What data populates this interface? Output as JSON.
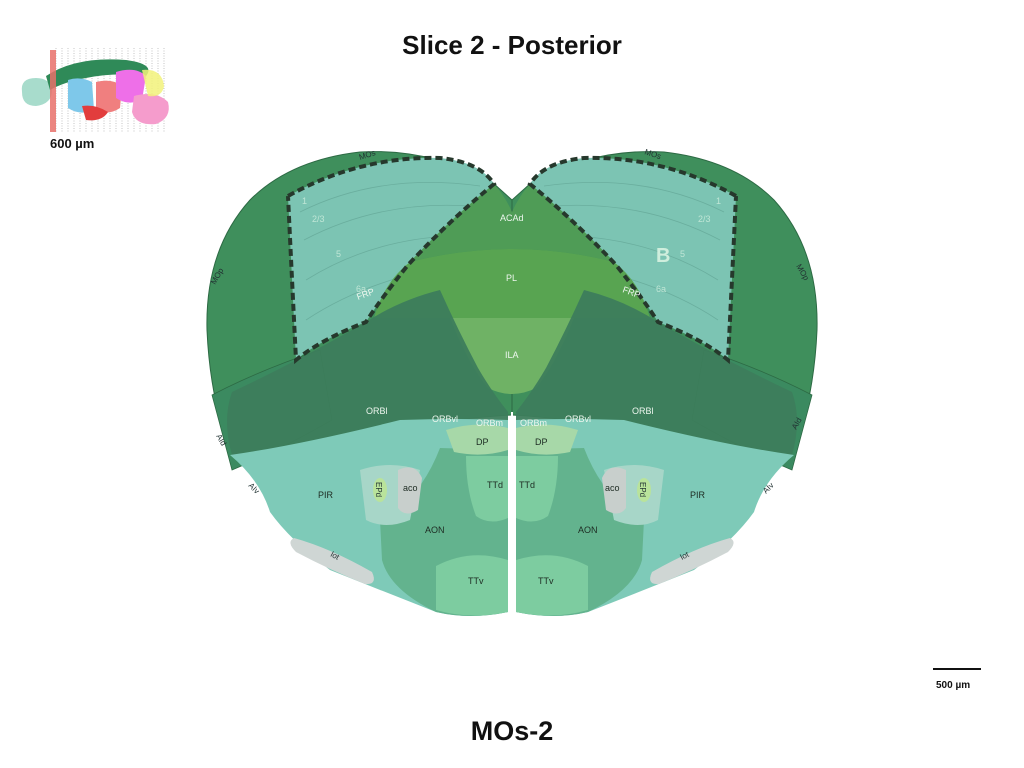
{
  "title": "Slice 2 - Posterior",
  "slice_label": "MOs-2",
  "thumbnail": {
    "scale_label": "600 µm"
  },
  "scale_bar": {
    "label": "500 µm"
  },
  "panel_letter": "B",
  "regions": {
    "mos": "MOs",
    "mop": "MOp",
    "acad": "ACAd",
    "pl": "PL",
    "ila": "ILA",
    "frp": "FRP",
    "orbl": "ORBl",
    "orbvl": "ORBvl",
    "orbm": "ORBm",
    "dp": "DP",
    "aid": "AId",
    "aiv": "AIv",
    "pir": "PIR",
    "epd": "EPd",
    "aco": "aco",
    "ttd": "TTd",
    "aon": "AON",
    "lot": "lot",
    "ttv": "TTv"
  },
  "layers": {
    "l1": "1",
    "l23": "2/3",
    "l5": "5",
    "l6a": "6a"
  },
  "colors": {
    "cortex_dark": "#3f8f5c",
    "mos_fill": "#7cc4b3",
    "orb_fill": "#3d7d5c",
    "pl_fill": "#58a451",
    "ila_fill": "#6fb265",
    "olfactory_teal": "#7ecab8",
    "aon_fill": "#63b38e",
    "dp_fill": "#a7d8a8",
    "tt_fill": "#7dcca0",
    "lot_fill": "#cfd6d4"
  }
}
